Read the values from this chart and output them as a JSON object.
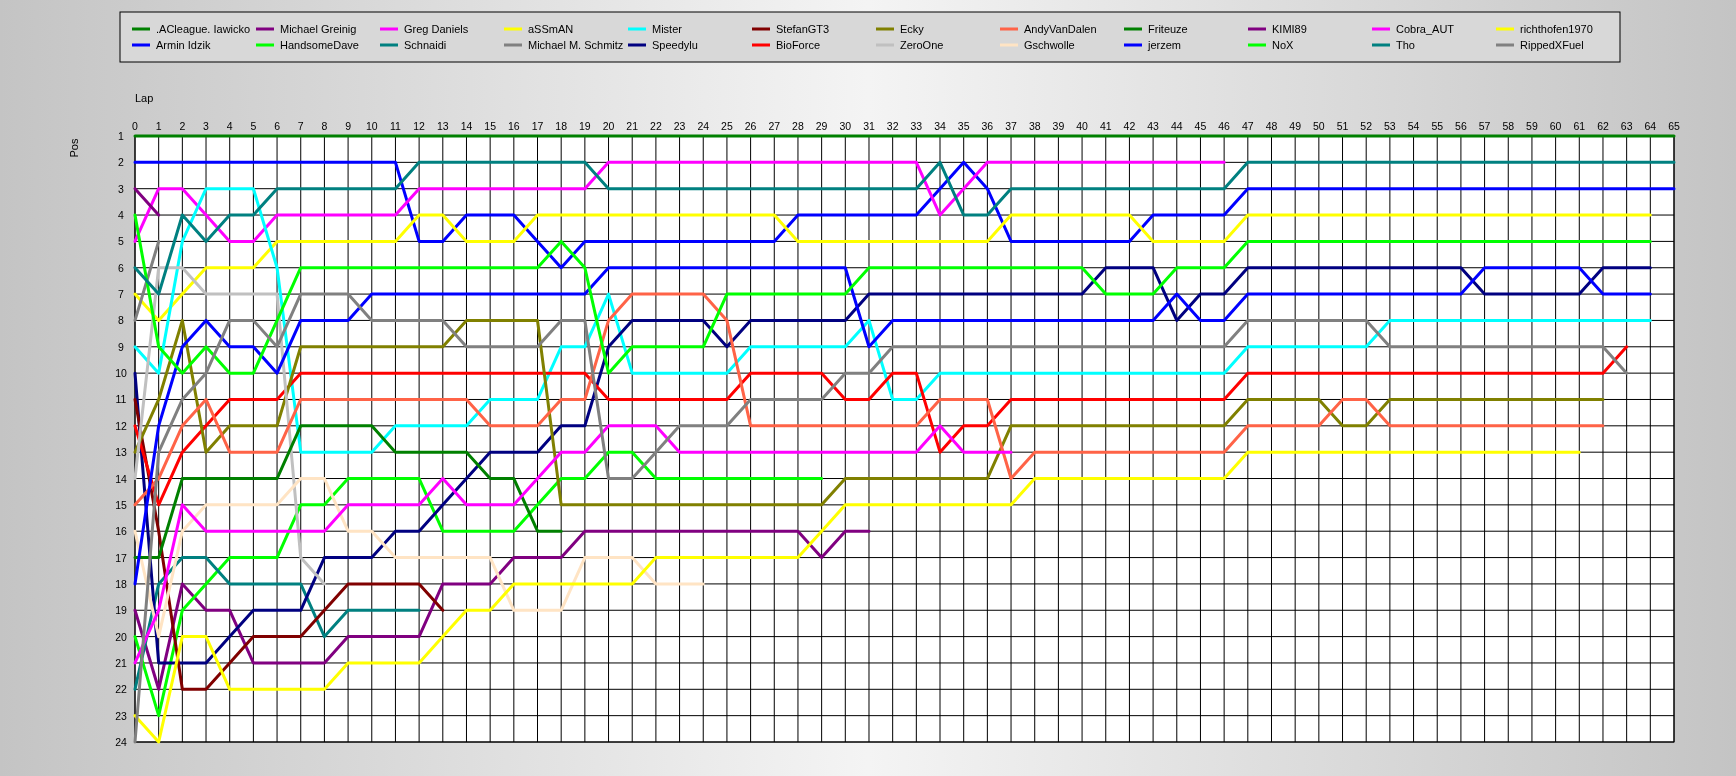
{
  "chart_data": {
    "type": "line",
    "xlabel": "Lap",
    "ylabel": "Pos",
    "xlim": [
      0,
      65
    ],
    "ylim": [
      24,
      1
    ],
    "xticks": [
      0,
      1,
      2,
      3,
      4,
      5,
      6,
      7,
      8,
      9,
      10,
      11,
      12,
      13,
      14,
      15,
      16,
      17,
      18,
      19,
      20,
      21,
      22,
      23,
      24,
      25,
      26,
      27,
      28,
      29,
      30,
      31,
      32,
      33,
      34,
      35,
      36,
      37,
      38,
      39,
      40,
      41,
      42,
      43,
      44,
      45,
      46,
      47,
      48,
      49,
      50,
      51,
      52,
      53,
      54,
      55,
      56,
      57,
      58,
      59,
      60,
      61,
      62,
      63,
      64,
      65
    ],
    "yticks": [
      1,
      2,
      3,
      4,
      5,
      6,
      7,
      8,
      9,
      10,
      11,
      12,
      13,
      14,
      15,
      16,
      17,
      18,
      19,
      20,
      21,
      22,
      23,
      24
    ],
    "grid": true,
    "legend": "top",
    "x": [
      0,
      1,
      2,
      3,
      4,
      5,
      6,
      7,
      8,
      9,
      10,
      11,
      12,
      13,
      14,
      15,
      16,
      17,
      18,
      19,
      20,
      21,
      22,
      23,
      24,
      25,
      26,
      27,
      28,
      29,
      30,
      31,
      32,
      33,
      34,
      35,
      36,
      37,
      38,
      39,
      40,
      41,
      42,
      43,
      44,
      45,
      46,
      47,
      48,
      49,
      50,
      51,
      52,
      53,
      54,
      55,
      56,
      57,
      58,
      59,
      60,
      61,
      62,
      63,
      64,
      65
    ],
    "series": [
      {
        "name": ".ACleague. Iawicko",
        "color": "#008000",
        "values": [
          1,
          1,
          1,
          1,
          1,
          1,
          1,
          1,
          1,
          1,
          1,
          1,
          1,
          1,
          1,
          1,
          1,
          1,
          1,
          1,
          1,
          1,
          1,
          1,
          1,
          1,
          1,
          1,
          1,
          1,
          1,
          1,
          1,
          1,
          1,
          1,
          1,
          1,
          1,
          1,
          1,
          1,
          1,
          1,
          1,
          1,
          1,
          1,
          1,
          1,
          1,
          1,
          1,
          1,
          1,
          1,
          1,
          1,
          1,
          1,
          1,
          1,
          1,
          1,
          1,
          1
        ]
      },
      {
        "name": "Armin Idzik",
        "color": "#0000ff",
        "values": [
          2,
          2,
          2,
          2,
          2,
          2,
          2,
          2,
          2,
          2,
          2,
          2,
          5,
          5,
          4,
          4,
          4,
          5,
          6,
          5,
          5,
          5,
          5,
          5,
          5,
          5,
          5,
          5,
          4,
          4,
          4,
          4,
          4,
          4,
          3,
          2,
          3,
          5,
          5,
          5,
          5,
          5,
          5,
          4,
          4,
          4,
          4,
          3,
          3,
          3,
          3,
          3,
          3,
          3,
          3,
          3,
          3,
          3,
          3,
          3,
          3,
          3,
          3,
          3,
          3,
          3
        ]
      },
      {
        "name": "Michael Greinig",
        "color": "#800080",
        "values": [
          19,
          22,
          18,
          19,
          19,
          21,
          21,
          21,
          21,
          20,
          20,
          20,
          20,
          18,
          18,
          18,
          17,
          17,
          17,
          16,
          16,
          16,
          16,
          16,
          16,
          16,
          16,
          16,
          16,
          17,
          16,
          16,
          null,
          null,
          null,
          null,
          null,
          null,
          null,
          null,
          null,
          null,
          null,
          null,
          null,
          null,
          null,
          null,
          null,
          null,
          null,
          null,
          null,
          null,
          null,
          null,
          null,
          null,
          null,
          null,
          null,
          null,
          null,
          null,
          null,
          null
        ]
      },
      {
        "name": "HandsomeDave",
        "color": "#00ff00",
        "values": [
          20,
          23,
          19,
          18,
          17,
          17,
          17,
          15,
          15,
          14,
          14,
          14,
          14,
          16,
          16,
          16,
          16,
          15,
          14,
          14,
          13,
          13,
          14,
          14,
          14,
          14,
          14,
          14,
          14,
          14,
          null,
          null,
          null,
          null,
          null,
          null,
          null,
          null,
          null,
          null,
          null,
          null,
          null,
          null,
          null,
          null,
          null,
          null,
          null,
          null,
          null,
          null,
          null,
          null,
          null,
          null,
          null,
          null,
          null,
          null,
          null,
          null,
          null,
          null,
          null,
          null
        ]
      },
      {
        "name": "Greg Daniels",
        "color": "#ff00ff",
        "values": [
          5,
          3,
          3,
          4,
          5,
          5,
          4,
          4,
          4,
          4,
          4,
          4,
          3,
          3,
          3,
          3,
          3,
          3,
          3,
          3,
          2,
          2,
          2,
          2,
          2,
          2,
          2,
          2,
          2,
          2,
          2,
          2,
          2,
          2,
          4,
          3,
          2,
          2,
          2,
          2,
          2,
          2,
          2,
          2,
          2,
          2,
          2,
          null,
          null,
          null,
          null,
          null,
          null,
          null,
          null,
          null,
          null,
          null,
          null,
          null,
          null,
          null,
          null,
          null,
          null,
          null
        ]
      },
      {
        "name": "Schnaidi",
        "color": "#008080",
        "values": [
          22,
          18,
          17,
          17,
          18,
          18,
          18,
          18,
          20,
          19,
          19,
          19,
          19,
          null,
          null,
          null,
          null,
          null,
          null,
          null,
          null,
          null,
          null,
          null,
          null,
          null,
          null,
          null,
          null,
          null,
          null,
          null,
          null,
          null,
          null,
          null,
          null,
          null,
          null,
          null,
          null,
          null,
          null,
          null,
          null,
          null,
          null,
          null,
          null,
          null,
          null,
          null,
          null,
          null,
          null,
          null,
          null,
          null,
          null,
          null,
          null,
          null,
          null,
          null,
          null,
          null
        ]
      },
      {
        "name": "aSSmAN",
        "color": "#ffff00",
        "values": [
          7,
          8,
          7,
          6,
          6,
          6,
          5,
          5,
          5,
          5,
          5,
          5,
          4,
          4,
          5,
          5,
          5,
          4,
          4,
          4,
          4,
          4,
          4,
          4,
          4,
          4,
          4,
          4,
          5,
          5,
          5,
          5,
          5,
          5,
          5,
          5,
          5,
          4,
          4,
          4,
          4,
          4,
          4,
          5,
          5,
          5,
          5,
          4,
          4,
          4,
          4,
          4,
          4,
          4,
          4,
          4,
          4,
          4,
          4,
          4,
          4,
          4,
          4,
          4,
          4,
          null
        ]
      },
      {
        "name": "Michael M. Schmitz",
        "color": "#808080",
        "values": [
          8,
          5,
          null,
          null,
          null,
          null,
          null,
          null,
          null,
          null,
          null,
          null,
          null,
          null,
          null,
          null,
          null,
          null,
          null,
          null,
          null,
          null,
          null,
          null,
          null,
          null,
          null,
          null,
          null,
          null,
          null,
          null,
          null,
          null,
          null,
          null,
          null,
          null,
          null,
          null,
          null,
          null,
          null,
          null,
          null,
          null,
          null,
          null,
          null,
          null,
          null,
          null,
          null,
          null,
          null,
          null,
          null,
          null,
          null,
          null,
          null,
          null,
          null,
          null,
          null,
          null
        ]
      },
      {
        "name": "Mister",
        "color": "#00ffff",
        "values": [
          9,
          10,
          5,
          3,
          3,
          3,
          6,
          13,
          13,
          13,
          13,
          12,
          12,
          12,
          12,
          11,
          11,
          11,
          9,
          9,
          7,
          10,
          10,
          10,
          10,
          10,
          9,
          9,
          9,
          9,
          9,
          8,
          11,
          11,
          10,
          10,
          10,
          10,
          10,
          10,
          10,
          10,
          10,
          10,
          10,
          10,
          10,
          9,
          9,
          9,
          9,
          9,
          9,
          8,
          8,
          8,
          8,
          8,
          8,
          8,
          8,
          8,
          8,
          8,
          8,
          null
        ]
      },
      {
        "name": "Speedylu",
        "color": "#000080",
        "values": [
          10,
          21,
          21,
          21,
          20,
          19,
          19,
          19,
          17,
          17,
          17,
          16,
          16,
          15,
          14,
          13,
          13,
          13,
          12,
          12,
          9,
          8,
          8,
          8,
          8,
          9,
          8,
          8,
          8,
          8,
          8,
          7,
          7,
          7,
          7,
          7,
          7,
          7,
          7,
          7,
          7,
          6,
          6,
          6,
          8,
          7,
          7,
          6,
          6,
          6,
          6,
          6,
          6,
          6,
          6,
          6,
          6,
          7,
          7,
          7,
          7,
          7,
          6,
          6,
          6,
          null
        ]
      },
      {
        "name": "StefanGT3",
        "color": "#800000",
        "values": [
          11,
          16,
          22,
          22,
          21,
          20,
          20,
          20,
          19,
          18,
          18,
          18,
          18,
          19,
          null,
          null,
          null,
          null,
          null,
          null,
          null,
          null,
          null,
          null,
          null,
          null,
          null,
          null,
          null,
          null,
          null,
          null,
          null,
          null,
          null,
          null,
          null,
          null,
          null,
          null,
          null,
          null,
          null,
          null,
          null,
          null,
          null,
          null,
          null,
          null,
          null,
          null,
          null,
          null,
          null,
          null,
          null,
          null,
          null,
          null,
          null,
          null,
          null,
          null,
          null,
          null
        ]
      },
      {
        "name": "BioForce",
        "color": "#ff0000",
        "values": [
          12,
          15,
          13,
          12,
          11,
          11,
          11,
          10,
          10,
          10,
          10,
          10,
          10,
          10,
          10,
          10,
          10,
          10,
          10,
          10,
          11,
          11,
          11,
          11,
          11,
          11,
          10,
          10,
          10,
          10,
          11,
          11,
          10,
          10,
          13,
          12,
          12,
          11,
          11,
          11,
          11,
          11,
          11,
          11,
          11,
          11,
          11,
          10,
          10,
          10,
          10,
          10,
          10,
          10,
          10,
          10,
          10,
          10,
          10,
          10,
          10,
          10,
          10,
          9,
          null,
          null
        ]
      },
      {
        "name": "Ecky",
        "color": "#808000",
        "values": [
          13,
          11,
          8,
          13,
          12,
          12,
          12,
          9,
          9,
          9,
          9,
          9,
          9,
          9,
          8,
          8,
          8,
          8,
          15,
          15,
          15,
          15,
          15,
          15,
          15,
          15,
          15,
          15,
          15,
          15,
          14,
          14,
          14,
          14,
          14,
          14,
          14,
          12,
          12,
          12,
          12,
          12,
          12,
          12,
          12,
          12,
          12,
          11,
          11,
          11,
          11,
          12,
          12,
          11,
          11,
          11,
          11,
          11,
          11,
          11,
          11,
          11,
          11,
          null,
          null,
          null
        ]
      },
      {
        "name": "ZeroOne",
        "color": "#c0c0c0",
        "values": [
          14,
          6,
          6,
          7,
          7,
          7,
          7,
          17,
          18,
          null,
          null,
          null,
          null,
          null,
          null,
          null,
          null,
          null,
          null,
          null,
          null,
          null,
          null,
          null,
          null,
          null,
          null,
          null,
          null,
          null,
          null,
          null,
          null,
          null,
          null,
          null,
          null,
          null,
          null,
          null,
          null,
          null,
          null,
          null,
          null,
          null,
          null,
          null,
          null,
          null,
          null,
          null,
          null,
          null,
          null,
          null,
          null,
          null,
          null,
          null,
          null,
          null,
          null,
          null,
          null,
          null
        ]
      },
      {
        "name": "AndyVanDalen",
        "color": "#ff6347",
        "values": [
          15,
          14,
          12,
          11,
          13,
          13,
          13,
          11,
          11,
          11,
          11,
          11,
          11,
          11,
          11,
          12,
          12,
          12,
          11,
          11,
          8,
          7,
          7,
          7,
          7,
          8,
          12,
          12,
          12,
          12,
          12,
          12,
          12,
          12,
          11,
          11,
          11,
          14,
          13,
          13,
          13,
          13,
          13,
          13,
          13,
          13,
          13,
          12,
          12,
          12,
          12,
          11,
          11,
          12,
          12,
          12,
          12,
          12,
          12,
          12,
          12,
          12,
          12,
          null,
          null,
          null
        ]
      },
      {
        "name": "Gschwolle",
        "color": "#ffe4c4",
        "values": [
          16,
          20,
          16,
          15,
          15,
          15,
          15,
          14,
          14,
          16,
          16,
          17,
          17,
          17,
          17,
          17,
          19,
          19,
          19,
          17,
          17,
          17,
          18,
          18,
          18,
          null,
          null,
          null,
          null,
          null,
          null,
          null,
          null,
          null,
          null,
          null,
          null,
          null,
          null,
          null,
          null,
          null,
          null,
          null,
          null,
          null,
          null,
          null,
          null,
          null,
          null,
          null,
          null,
          null,
          null,
          null,
          null,
          null,
          null,
          null,
          null,
          null,
          null,
          null,
          null,
          null
        ]
      },
      {
        "name": "Friteuze",
        "color": "#008000",
        "values": [
          17,
          17,
          14,
          14,
          14,
          14,
          14,
          12,
          12,
          12,
          12,
          13,
          13,
          13,
          13,
          14,
          14,
          16,
          16,
          null,
          null,
          null,
          null,
          null,
          null,
          null,
          null,
          null,
          null,
          null,
          null,
          null,
          null,
          null,
          null,
          null,
          null,
          null,
          null,
          null,
          null,
          null,
          null,
          null,
          null,
          null,
          null,
          null,
          null,
          null,
          null,
          null,
          null,
          null,
          null,
          null,
          null,
          null,
          null,
          null,
          null,
          null,
          null,
          null,
          null,
          null
        ]
      },
      {
        "name": "jerzem",
        "color": "#0000ff",
        "values": [
          18,
          12,
          9,
          8,
          9,
          9,
          10,
          8,
          8,
          8,
          7,
          7,
          7,
          7,
          7,
          7,
          7,
          7,
          7,
          7,
          6,
          6,
          6,
          6,
          6,
          6,
          6,
          6,
          6,
          6,
          6,
          9,
          8,
          8,
          8,
          8,
          8,
          8,
          8,
          8,
          8,
          8,
          8,
          8,
          7,
          8,
          8,
          7,
          7,
          7,
          7,
          7,
          7,
          7,
          7,
          7,
          7,
          6,
          6,
          6,
          6,
          6,
          7,
          7,
          7,
          null
        ]
      },
      {
        "name": "KIMI89",
        "color": "#800080",
        "values": [
          3,
          4,
          null,
          null,
          null,
          null,
          null,
          null,
          null,
          null,
          null,
          null,
          null,
          null,
          null,
          null,
          null,
          null,
          null,
          null,
          null,
          null,
          null,
          null,
          null,
          null,
          null,
          null,
          null,
          null,
          null,
          null,
          null,
          null,
          null,
          null,
          null,
          null,
          null,
          null,
          null,
          null,
          null,
          null,
          null,
          null,
          null,
          null,
          null,
          null,
          null,
          null,
          null,
          null,
          null,
          null,
          null,
          null,
          null,
          null,
          null,
          null,
          null,
          null,
          null,
          null
        ]
      },
      {
        "name": "NoX",
        "color": "#00ff00",
        "values": [
          4,
          9,
          10,
          9,
          10,
          10,
          8,
          6,
          6,
          6,
          6,
          6,
          6,
          6,
          6,
          6,
          6,
          6,
          5,
          6,
          10,
          9,
          9,
          9,
          9,
          7,
          7,
          7,
          7,
          7,
          7,
          6,
          6,
          6,
          6,
          6,
          6,
          6,
          6,
          6,
          6,
          7,
          7,
          7,
          6,
          6,
          6,
          5,
          5,
          5,
          5,
          5,
          5,
          5,
          5,
          5,
          5,
          5,
          5,
          5,
          5,
          5,
          5,
          5,
          5,
          null
        ]
      },
      {
        "name": "Cobra_AUT",
        "color": "#ff00ff",
        "values": [
          21,
          19,
          15,
          16,
          16,
          16,
          16,
          16,
          16,
          15,
          15,
          15,
          15,
          14,
          15,
          15,
          15,
          14,
          13,
          13,
          12,
          12,
          12,
          13,
          13,
          13,
          13,
          13,
          13,
          13,
          13,
          13,
          13,
          13,
          12,
          13,
          13,
          13,
          null,
          null,
          null,
          null,
          null,
          null,
          null,
          null,
          null,
          null,
          null,
          null,
          null,
          null,
          null,
          null,
          null,
          null,
          null,
          null,
          null,
          null,
          null,
          null,
          null,
          null,
          null,
          null
        ]
      },
      {
        "name": "Tho",
        "color": "#008080",
        "values": [
          6,
          7,
          4,
          5,
          4,
          4,
          3,
          3,
          3,
          3,
          3,
          3,
          2,
          2,
          2,
          2,
          2,
          2,
          2,
          2,
          3,
          3,
          3,
          3,
          3,
          3,
          3,
          3,
          3,
          3,
          3,
          3,
          3,
          3,
          2,
          4,
          4,
          3,
          3,
          3,
          3,
          3,
          3,
          3,
          3,
          3,
          3,
          2,
          2,
          2,
          2,
          2,
          2,
          2,
          2,
          2,
          2,
          2,
          2,
          2,
          2,
          2,
          2,
          2,
          2,
          2
        ]
      },
      {
        "name": "richthofen1970",
        "color": "#ffff00",
        "values": [
          23,
          24,
          20,
          20,
          22,
          22,
          22,
          22,
          22,
          21,
          21,
          21,
          21,
          20,
          19,
          19,
          18,
          18,
          18,
          18,
          18,
          18,
          17,
          17,
          17,
          17,
          17,
          17,
          17,
          16,
          15,
          15,
          15,
          15,
          15,
          15,
          15,
          15,
          14,
          14,
          14,
          14,
          14,
          14,
          14,
          14,
          14,
          13,
          13,
          13,
          13,
          13,
          13,
          13,
          13,
          13,
          13,
          13,
          13,
          13,
          13,
          13,
          null,
          null,
          null,
          null
        ]
      },
      {
        "name": "RippedXFuel",
        "color": "#808080",
        "values": [
          24,
          13,
          11,
          10,
          8,
          8,
          9,
          7,
          7,
          7,
          8,
          8,
          8,
          8,
          9,
          9,
          9,
          9,
          8,
          8,
          14,
          14,
          13,
          12,
          12,
          12,
          11,
          11,
          11,
          11,
          10,
          10,
          9,
          9,
          9,
          9,
          9,
          9,
          9,
          9,
          9,
          9,
          9,
          9,
          9,
          9,
          9,
          8,
          8,
          8,
          8,
          8,
          8,
          9,
          9,
          9,
          9,
          9,
          9,
          9,
          9,
          9,
          9,
          10,
          null,
          null
        ]
      }
    ]
  }
}
